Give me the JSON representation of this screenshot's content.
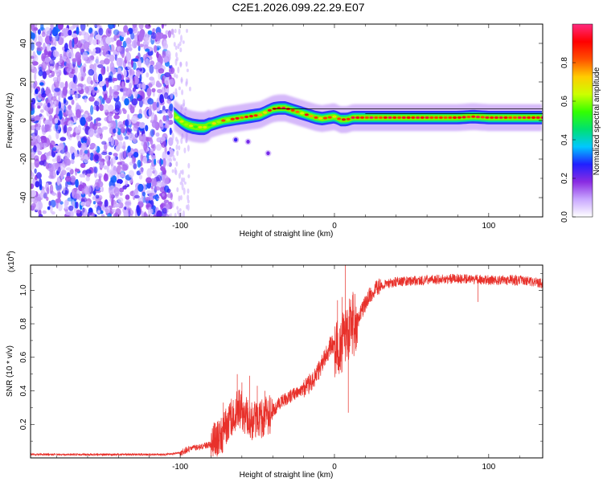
{
  "title": "C2E1.2026.099.22.29.E07",
  "chart_data": [
    {
      "type": "heatmap",
      "panel": "spectrogram",
      "xlabel": "Height of straight line (km)",
      "ylabel": "Frequency (Hz)",
      "xlim": [
        -197,
        135
      ],
      "ylim": [
        -50,
        50
      ],
      "xticks": [
        -100,
        0,
        100
      ],
      "xtick_labels": [
        "-100",
        "0",
        "100"
      ],
      "yticks": [
        -40,
        -20,
        0,
        20,
        40
      ],
      "ytick_labels": [
        "-40",
        "-20",
        "0",
        "20",
        "40"
      ],
      "noise_region_x": [
        -197,
        -105
      ],
      "ridge": {
        "x": [
          -104,
          -100,
          -96,
          -92,
          -88,
          -84,
          -80,
          -72,
          -64,
          -56,
          -48,
          -44,
          -40,
          -36,
          -32,
          -28,
          -24,
          -20,
          -16,
          -12,
          -8,
          -4,
          0,
          4,
          8,
          12,
          20,
          40,
          60,
          80,
          90,
          100,
          120,
          135
        ],
        "y": [
          3,
          0,
          -2,
          -3,
          -3.5,
          -3.5,
          -2,
          0,
          1,
          2,
          3,
          4.5,
          6,
          6.5,
          6.5,
          5.5,
          4.5,
          3.5,
          2.5,
          1.5,
          1,
          1.5,
          2,
          0.5,
          0.5,
          1.5,
          1.5,
          1.5,
          1.5,
          1.5,
          2,
          1.5,
          1.5,
          1.5
        ]
      },
      "blobs": [
        {
          "x": -64,
          "y": -10,
          "amp": 0.25
        },
        {
          "x": -56,
          "y": -11,
          "amp": 0.2
        },
        {
          "x": -43,
          "y": -17,
          "amp": 0.2
        }
      ],
      "colorbar": {
        "label": "Normalized spectral amplitude",
        "range": [
          0,
          1
        ],
        "ticks": [
          0.0,
          0.2,
          0.4,
          0.6,
          0.8
        ],
        "tick_labels": [
          "0.0",
          "0.2",
          "0.4",
          "0.6",
          "0.8"
        ],
        "colors": [
          "#ffffff",
          "#c9a8ff",
          "#8a2be2",
          "#2020ff",
          "#00c8ff",
          "#00e070",
          "#33ff00",
          "#ccff00",
          "#ffcc00",
          "#ff5000",
          "#ff0000",
          "#ff2a7f"
        ]
      }
    },
    {
      "type": "line",
      "panel": "snr",
      "xlabel": "Height of straight line (km)",
      "ylabel": "SNR (10 * v/v)",
      "yscale_label": "(x10",
      "yscale_exp": "4",
      "xlim": [
        -197,
        135
      ],
      "ylim": [
        0,
        1.15
      ],
      "xticks": [
        -100,
        0,
        100
      ],
      "xtick_labels": [
        "-100",
        "0",
        "100"
      ],
      "yticks": [
        0.2,
        0.4,
        0.6,
        0.8,
        1.0
      ],
      "ytick_labels": [
        "0.2",
        "0.4",
        "0.6",
        "0.8",
        "1.0"
      ],
      "color": "#e8302a",
      "envelope": {
        "x": [
          -197,
          -110,
          -100,
          -95,
          -90,
          -85,
          -80,
          -75,
          -70,
          -66,
          -62,
          -58,
          -54,
          -50,
          -46,
          -42,
          -38,
          -34,
          -30,
          -26,
          -22,
          -18,
          -14,
          -10,
          -6,
          -2,
          2,
          6,
          10,
          14,
          18,
          22,
          26,
          30,
          40,
          60,
          80,
          100,
          120,
          135
        ],
        "y": [
          0.02,
          0.02,
          0.03,
          0.05,
          0.06,
          0.07,
          0.08,
          0.12,
          0.18,
          0.25,
          0.3,
          0.26,
          0.22,
          0.22,
          0.24,
          0.26,
          0.3,
          0.34,
          0.36,
          0.38,
          0.4,
          0.43,
          0.46,
          0.52,
          0.6,
          0.68,
          0.62,
          0.72,
          0.78,
          0.8,
          0.88,
          0.96,
          1.0,
          1.03,
          1.05,
          1.06,
          1.07,
          1.06,
          1.06,
          1.04
        ]
      },
      "spikes": [
        {
          "x": -72,
          "y": 0.33
        },
        {
          "x": -63,
          "y": 0.5
        },
        {
          "x": -60,
          "y": 0.45
        },
        {
          "x": -55,
          "y": 0.49
        },
        {
          "x": -50,
          "y": 0.43
        },
        {
          "x": -45,
          "y": 0.4
        },
        {
          "x": 2,
          "y": 0.94
        },
        {
          "x": 5,
          "y": 0.96
        },
        {
          "x": 7,
          "y": 1.15
        },
        {
          "x": 9,
          "y": 0.27
        },
        {
          "x": 12,
          "y": 0.99
        },
        {
          "x": 93,
          "y": 0.93
        }
      ]
    }
  ]
}
